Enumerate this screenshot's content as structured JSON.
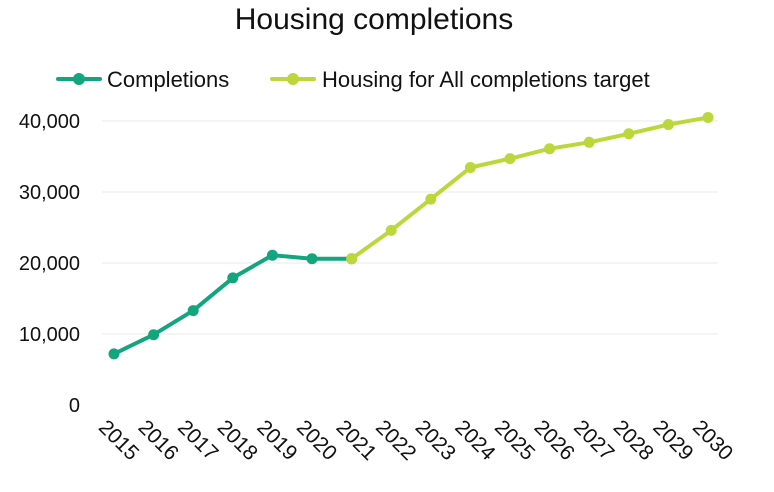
{
  "chart_data": {
    "type": "line",
    "title": "Housing completions",
    "xlabel": "",
    "ylabel": "",
    "ylim": [
      0,
      40000
    ],
    "yticks": [
      0,
      10000,
      20000,
      30000,
      40000
    ],
    "ytick_labels": [
      "0",
      "10,000",
      "20,000",
      "30,000",
      "40,000"
    ],
    "grid": true,
    "legend_position": "top",
    "categories": [
      "2015",
      "2016",
      "2017",
      "2018",
      "2019",
      "2020",
      "2021",
      "2022",
      "2023",
      "2024",
      "2025",
      "2026",
      "2027",
      "2028",
      "2029",
      "2030"
    ],
    "series": [
      {
        "name": "Completions",
        "color": "#13a57e",
        "x": [
          "2015",
          "2016",
          "2017",
          "2018",
          "2019",
          "2020",
          "2021"
        ],
        "values": [
          7200,
          9900,
          13300,
          17900,
          21100,
          20600,
          20600
        ]
      },
      {
        "name": "Housing for All completions target",
        "color": "#bcd73c",
        "x": [
          "2021",
          "2022",
          "2023",
          "2024",
          "2025",
          "2026",
          "2027",
          "2028",
          "2029",
          "2030"
        ],
        "values": [
          20600,
          24600,
          29000,
          33450,
          34700,
          36100,
          37000,
          38200,
          39500,
          40500
        ]
      }
    ]
  }
}
